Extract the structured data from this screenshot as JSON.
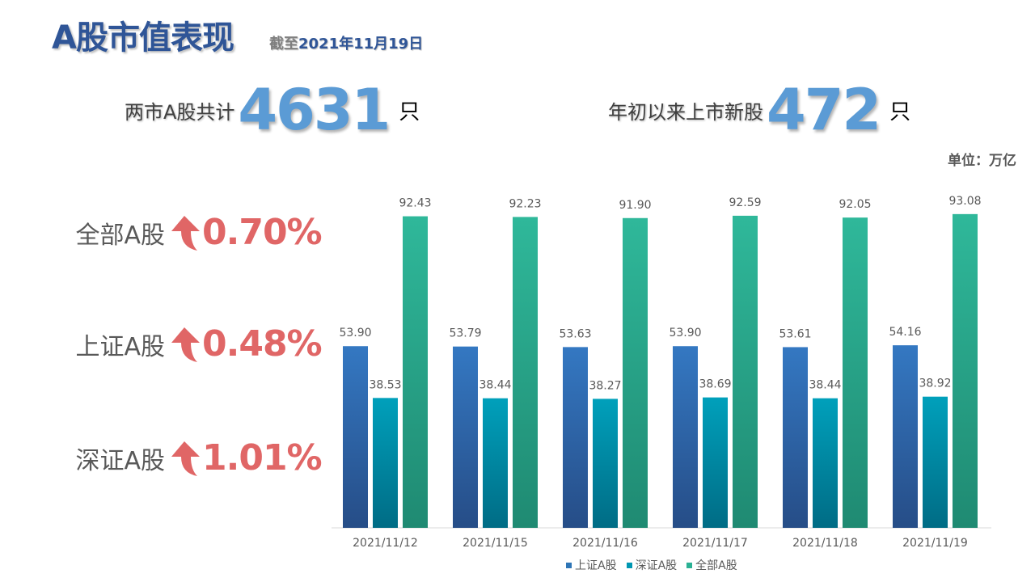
{
  "header": {
    "title": "A股市值表现",
    "asof_prefix": "截至",
    "asof_date": "2021年11月19日"
  },
  "stats": {
    "total": {
      "label": "两市A股共计",
      "value": "4631",
      "unit": "只"
    },
    "new": {
      "label": "年初以来上市新股",
      "value": "472",
      "unit": "只"
    }
  },
  "changes": [
    {
      "name": "全部A股",
      "pct": "0.70%",
      "direction": "up"
    },
    {
      "name": "上证A股",
      "pct": "0.48%",
      "direction": "up"
    },
    {
      "name": "深证A股",
      "pct": "1.01%",
      "direction": "up"
    }
  ],
  "colors": {
    "title": "#2f5597",
    "stat_number": "#5b9bd5",
    "change_up": "#e06666",
    "sh": "#2e75b6",
    "sz": "#0097b2",
    "all": "#2bb194"
  },
  "chart_data": {
    "type": "bar",
    "unit_label": "单位：万亿",
    "categories": [
      "2021/11/12",
      "2021/11/15",
      "2021/11/16",
      "2021/11/17",
      "2021/11/18",
      "2021/11/19"
    ],
    "series": [
      {
        "name": "上证A股",
        "values": [
          53.9,
          53.79,
          53.63,
          53.9,
          53.61,
          54.16
        ]
      },
      {
        "name": "深证A股",
        "values": [
          38.53,
          38.44,
          38.27,
          38.69,
          38.44,
          38.92
        ]
      },
      {
        "name": "全部A股",
        "values": [
          92.43,
          92.23,
          91.9,
          92.59,
          92.05,
          93.08
        ]
      }
    ],
    "ylim": [
      0,
      100
    ],
    "grid": false,
    "legend": "bottom"
  }
}
